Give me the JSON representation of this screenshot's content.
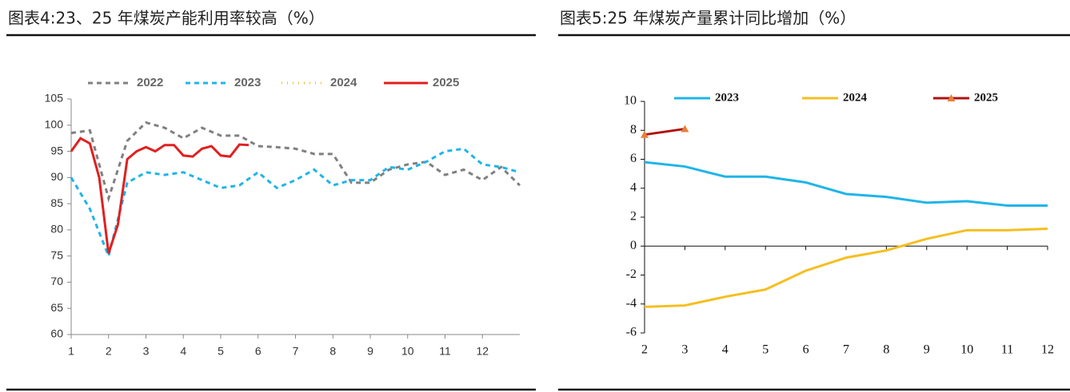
{
  "chart_data": [
    {
      "type": "line",
      "title": "图表4:23、25 年煤炭产能利用率较高（%）",
      "xlim": [
        1,
        13
      ],
      "xticks": [
        1,
        2,
        3,
        4,
        5,
        6,
        7,
        8,
        9,
        10,
        11,
        12
      ],
      "ylim": [
        60,
        105
      ],
      "yticks": [
        60,
        65,
        70,
        75,
        80,
        85,
        90,
        95,
        100,
        105
      ],
      "series": [
        {
          "name": "2022",
          "color": "#808080",
          "style": "dashed",
          "x": [
            1,
            1.5,
            2,
            2.5,
            3,
            3.5,
            4,
            4.5,
            5,
            5.5,
            6,
            6.5,
            7,
            7.5,
            8,
            8.5,
            9,
            9.5,
            10,
            10.5,
            11,
            11.5,
            12,
            12.5,
            13
          ],
          "values": [
            98.5,
            99,
            86,
            97,
            100.5,
            99.5,
            97.5,
            99.5,
            98,
            98,
            96,
            95.8,
            95.5,
            94.5,
            94.5,
            89,
            89,
            91.5,
            92.5,
            93,
            90.5,
            91.5,
            89.5,
            92,
            88.5
          ]
        },
        {
          "name": "2023",
          "color": "#1fb5e8",
          "style": "dashed",
          "x": [
            1,
            1.5,
            2,
            2.5,
            3,
            3.5,
            4,
            4.5,
            5,
            5.5,
            6,
            6.5,
            7,
            7.5,
            8,
            8.5,
            9,
            9.5,
            10,
            10.5,
            11,
            11.5,
            12,
            12.5,
            13
          ],
          "values": [
            90,
            84,
            75,
            89,
            91,
            90.5,
            91,
            89.5,
            88,
            88.5,
            91,
            88,
            89.5,
            91.5,
            88.5,
            89.5,
            89.5,
            92,
            91.5,
            93,
            95,
            95.5,
            92.5,
            92,
            91
          ]
        },
        {
          "name": "2024",
          "color": "#f0c020",
          "style": "dotted",
          "x": [
            1,
            13
          ],
          "values": [
            null,
            null
          ]
        },
        {
          "name": "2025",
          "color": "#e02020",
          "style": "solid",
          "x": [
            1,
            1.25,
            1.5,
            1.75,
            2,
            2.25,
            2.5,
            2.75,
            3,
            3.25,
            3.5,
            3.75,
            4,
            4.25,
            4.5,
            4.75,
            5,
            5.25,
            5.5,
            5.75
          ],
          "values": [
            95,
            97.5,
            96.5,
            90,
            75.5,
            81,
            93.5,
            95,
            95.8,
            95,
            96.2,
            96.2,
            94.2,
            94,
            95.5,
            96,
            94.2,
            94,
            96.3,
            96.2
          ]
        }
      ]
    },
    {
      "type": "line",
      "title": "图表5:25 年煤炭产量累计同比增加（%）",
      "xlim": [
        2,
        12
      ],
      "xticks": [
        2,
        3,
        4,
        5,
        6,
        7,
        8,
        9,
        10,
        11,
        12
      ],
      "ylim": [
        -6,
        10
      ],
      "yticks": [
        -6,
        -4,
        -2,
        0,
        2,
        4,
        6,
        8,
        10
      ],
      "series": [
        {
          "name": "2023",
          "color": "#1fb5e8",
          "style": "solid",
          "x": [
            2,
            3,
            4,
            5,
            6,
            7,
            8,
            9,
            10,
            11,
            12
          ],
          "values": [
            5.8,
            5.5,
            4.8,
            4.8,
            4.4,
            3.6,
            3.4,
            3.0,
            3.1,
            2.8,
            2.8
          ]
        },
        {
          "name": "2024",
          "color": "#f5bf20",
          "style": "solid",
          "x": [
            2,
            3,
            4,
            5,
            6,
            7,
            8,
            9,
            10,
            11,
            12
          ],
          "values": [
            -4.2,
            -4.1,
            -3.5,
            -3.0,
            -1.7,
            -0.8,
            -0.3,
            0.5,
            1.1,
            1.1,
            1.2
          ]
        },
        {
          "name": "2025",
          "color": "#b01010",
          "style": "solid",
          "marker": "triangle",
          "marker_color": "#e8803a",
          "x": [
            2,
            3
          ],
          "values": [
            7.7,
            8.1
          ]
        }
      ]
    }
  ]
}
